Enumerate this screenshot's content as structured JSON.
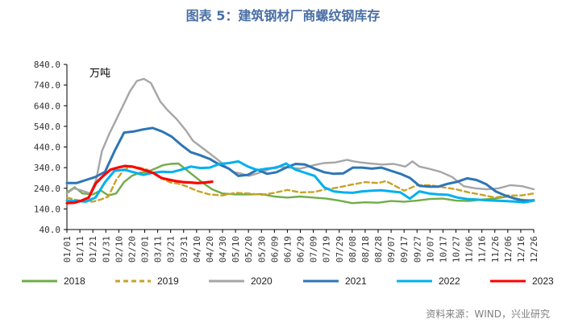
{
  "title": "图表 5：建筑钢材厂商螺纹钢库存",
  "source": "资料来源：WIND，兴业研究",
  "chart_data": {
    "type": "line",
    "title": "图表 5：建筑钢材厂商螺纹钢库存",
    "unit_label": "万吨",
    "ylim": [
      40,
      840
    ],
    "yticks": [
      "840.0",
      "740.0",
      "640.0",
      "540.0",
      "440.0",
      "340.0",
      "240.0",
      "140.0",
      "40.0"
    ],
    "ytick_values": [
      840,
      740,
      640,
      540,
      440,
      340,
      240,
      140,
      40
    ],
    "grid": false,
    "legend_position": "bottom",
    "x": [
      "01/01",
      "01/11",
      "01/21",
      "01/31",
      "02/10",
      "02/20",
      "03/01",
      "03/11",
      "03/21",
      "03/31",
      "04/10",
      "04/20",
      "04/30",
      "05/10",
      "05/20",
      "05/30",
      "06/09",
      "06/19",
      "06/29",
      "07/09",
      "07/19",
      "07/29",
      "08/08",
      "08/18",
      "08/28",
      "09/07",
      "09/17",
      "09/27",
      "10/07",
      "10/17",
      "10/27",
      "11/06",
      "11/16",
      "11/26",
      "12/06",
      "12/16",
      "12/26"
    ],
    "series": [
      {
        "name": "2018",
        "color": "#70ad47",
        "dash": "solid",
        "points": [
          [
            0,
            220
          ],
          [
            0.6,
            245
          ],
          [
            1.2,
            215
          ],
          [
            2,
            210
          ],
          [
            2.6,
            230
          ],
          [
            3.2,
            205
          ],
          [
            3.8,
            215
          ],
          [
            4.4,
            270
          ],
          [
            5,
            300
          ],
          [
            5.6,
            315
          ],
          [
            6.2,
            320
          ],
          [
            6.8,
            335
          ],
          [
            7.4,
            352
          ],
          [
            8,
            358
          ],
          [
            8.6,
            360
          ],
          [
            9.2,
            330
          ],
          [
            9.8,
            300
          ],
          [
            10.5,
            265
          ],
          [
            11.2,
            235
          ],
          [
            12,
            215
          ],
          [
            13,
            210
          ],
          [
            14,
            210
          ],
          [
            15,
            212
          ],
          [
            16,
            200
          ],
          [
            17,
            195
          ],
          [
            18,
            200
          ],
          [
            19,
            195
          ],
          [
            20,
            190
          ],
          [
            21,
            180
          ],
          [
            22,
            168
          ],
          [
            23,
            172
          ],
          [
            24,
            170
          ],
          [
            25,
            178
          ],
          [
            26,
            175
          ],
          [
            27,
            180
          ],
          [
            28,
            188
          ],
          [
            29,
            190
          ],
          [
            30,
            180
          ],
          [
            31,
            178
          ],
          [
            32,
            185
          ],
          [
            33,
            190
          ],
          [
            34,
            200
          ],
          [
            35,
            185
          ],
          [
            36,
            180
          ]
        ]
      },
      {
        "name": "2019",
        "color": "#c9a227",
        "dash": "dashed",
        "points": [
          [
            0,
            195
          ],
          [
            0.6,
            185
          ],
          [
            1.2,
            178
          ],
          [
            2,
            175
          ],
          [
            2.6,
            185
          ],
          [
            3.2,
            200
          ],
          [
            3.8,
            280
          ],
          [
            4.4,
            330
          ],
          [
            5,
            345
          ],
          [
            5.6,
            340
          ],
          [
            6.2,
            330
          ],
          [
            6.8,
            310
          ],
          [
            7.4,
            285
          ],
          [
            8,
            268
          ],
          [
            8.6,
            262
          ],
          [
            9.2,
            250
          ],
          [
            10,
            228
          ],
          [
            11,
            210
          ],
          [
            12,
            205
          ],
          [
            13,
            218
          ],
          [
            14,
            215
          ],
          [
            15,
            208
          ],
          [
            16,
            218
          ],
          [
            17,
            232
          ],
          [
            18,
            220
          ],
          [
            19,
            222
          ],
          [
            20,
            235
          ],
          [
            21,
            245
          ],
          [
            22,
            258
          ],
          [
            23,
            270
          ],
          [
            24,
            265
          ],
          [
            24.6,
            275
          ],
          [
            25.2,
            255
          ],
          [
            26,
            228
          ],
          [
            27,
            255
          ],
          [
            28,
            255
          ],
          [
            29,
            245
          ],
          [
            30,
            235
          ],
          [
            31,
            220
          ],
          [
            32,
            208
          ],
          [
            33,
            195
          ],
          [
            34,
            205
          ],
          [
            35,
            205
          ],
          [
            36,
            215
          ]
        ]
      },
      {
        "name": "2020",
        "color": "#a6a6a6",
        "dash": "solid",
        "points": [
          [
            0,
            215
          ],
          [
            0.6,
            240
          ],
          [
            1.2,
            230
          ],
          [
            2,
            215
          ],
          [
            2.5,
            280
          ],
          [
            3,
            420
          ],
          [
            3.6,
            500
          ],
          [
            4.2,
            570
          ],
          [
            4.8,
            640
          ],
          [
            5.4,
            710
          ],
          [
            6,
            760
          ],
          [
            6.6,
            770
          ],
          [
            7.2,
            750
          ],
          [
            8,
            660
          ],
          [
            8.6,
            620
          ],
          [
            9.4,
            575
          ],
          [
            10.2,
            520
          ],
          [
            10.8,
            470
          ],
          [
            11.5,
            440
          ],
          [
            12.2,
            410
          ],
          [
            13,
            375
          ],
          [
            13.6,
            345
          ],
          [
            14.2,
            320
          ],
          [
            15,
            310
          ],
          [
            15.6,
            300
          ],
          [
            16.2,
            310
          ],
          [
            17,
            325
          ],
          [
            18,
            345
          ],
          [
            19,
            340
          ],
          [
            20,
            335
          ],
          [
            21,
            350
          ],
          [
            22,
            362
          ],
          [
            23,
            365
          ],
          [
            24,
            378
          ],
          [
            24.6,
            370
          ],
          [
            25.2,
            365
          ],
          [
            26,
            360
          ],
          [
            27,
            355
          ],
          [
            28,
            358
          ],
          [
            29,
            345
          ],
          [
            29.6,
            370
          ],
          [
            30.2,
            345
          ],
          [
            31,
            335
          ],
          [
            32,
            320
          ],
          [
            33,
            295
          ],
          [
            34,
            250
          ],
          [
            35,
            240
          ],
          [
            36,
            235
          ],
          [
            37,
            240
          ],
          [
            38,
            255
          ],
          [
            39,
            250
          ],
          [
            40,
            235
          ]
        ]
      },
      {
        "name": "2021",
        "color": "#2e75b6",
        "dash": "solid",
        "points": [
          [
            0,
            265
          ],
          [
            1,
            265
          ],
          [
            2,
            280
          ],
          [
            3,
            295
          ],
          [
            4,
            320
          ],
          [
            5,
            420
          ],
          [
            6,
            510
          ],
          [
            7,
            515
          ],
          [
            8,
            525
          ],
          [
            9,
            532
          ],
          [
            10,
            515
          ],
          [
            11,
            490
          ],
          [
            12,
            450
          ],
          [
            13,
            415
          ],
          [
            14,
            400
          ],
          [
            15,
            382
          ],
          [
            16,
            355
          ],
          [
            17,
            335
          ],
          [
            18,
            300
          ],
          [
            19,
            305
          ],
          [
            20,
            330
          ],
          [
            21,
            310
          ],
          [
            22,
            318
          ],
          [
            23,
            340
          ],
          [
            24,
            358
          ],
          [
            25,
            355
          ],
          [
            26,
            335
          ],
          [
            27,
            318
          ],
          [
            28,
            310
          ],
          [
            29,
            312
          ],
          [
            30,
            340
          ],
          [
            31,
            340
          ],
          [
            32,
            335
          ],
          [
            33,
            340
          ],
          [
            34,
            325
          ],
          [
            35,
            310
          ],
          [
            36,
            290
          ],
          [
            37,
            252
          ],
          [
            38,
            248
          ],
          [
            39,
            248
          ],
          [
            40,
            262
          ],
          [
            41,
            272
          ],
          [
            42,
            288
          ],
          [
            43,
            280
          ],
          [
            44,
            260
          ],
          [
            45,
            225
          ],
          [
            46,
            205
          ],
          [
            47,
            190
          ],
          [
            48,
            178
          ],
          [
            49,
            182
          ]
        ]
      },
      {
        "name": "2022",
        "color": "#00b0f0",
        "dash": "solid",
        "points": [
          [
            0,
            180
          ],
          [
            1,
            178
          ],
          [
            2,
            175
          ],
          [
            3,
            195
          ],
          [
            4,
            270
          ],
          [
            5,
            325
          ],
          [
            6,
            330
          ],
          [
            7,
            318
          ],
          [
            8,
            305
          ],
          [
            9,
            315
          ],
          [
            10,
            320
          ],
          [
            11,
            318
          ],
          [
            12,
            330
          ],
          [
            13,
            345
          ],
          [
            14,
            338
          ],
          [
            15,
            340
          ],
          [
            16,
            358
          ],
          [
            17,
            362
          ],
          [
            18,
            370
          ],
          [
            19,
            345
          ],
          [
            20,
            328
          ],
          [
            21,
            335
          ],
          [
            22,
            340
          ],
          [
            23,
            360
          ],
          [
            24,
            330
          ],
          [
            25,
            315
          ],
          [
            26,
            300
          ],
          [
            27,
            245
          ],
          [
            28,
            225
          ],
          [
            29,
            220
          ],
          [
            30,
            218
          ],
          [
            31,
            225
          ],
          [
            32,
            228
          ],
          [
            33,
            230
          ],
          [
            34,
            225
          ],
          [
            35,
            220
          ],
          [
            36,
            190
          ],
          [
            37,
            225
          ],
          [
            38,
            215
          ],
          [
            39,
            210
          ],
          [
            40,
            208
          ],
          [
            41,
            195
          ],
          [
            42,
            188
          ],
          [
            43,
            185
          ],
          [
            44,
            182
          ],
          [
            45,
            180
          ],
          [
            46,
            178
          ],
          [
            47,
            176
          ],
          [
            48,
            172
          ],
          [
            49,
            180
          ]
        ]
      },
      {
        "name": "2023",
        "color": "#ff0000",
        "dash": "solid",
        "points": [
          [
            0,
            168
          ],
          [
            0.8,
            170
          ],
          [
            1.6,
            180
          ],
          [
            2.4,
            195
          ],
          [
            3.2,
            265
          ],
          [
            4,
            300
          ],
          [
            4.8,
            330
          ],
          [
            5.6,
            340
          ],
          [
            6.4,
            348
          ],
          [
            7.2,
            345
          ],
          [
            8,
            335
          ],
          [
            8.8,
            325
          ],
          [
            9.6,
            312
          ],
          [
            10.4,
            290
          ],
          [
            11.2,
            282
          ],
          [
            12,
            275
          ],
          [
            12.8,
            270
          ],
          [
            13.6,
            268
          ],
          [
            14.4,
            265
          ],
          [
            15.2,
            268
          ],
          [
            16,
            272
          ]
        ]
      }
    ]
  },
  "legend": [
    {
      "label": "2018",
      "color": "#70ad47",
      "dash": "solid"
    },
    {
      "label": "2019",
      "color": "#c9a227",
      "dash": "dashed"
    },
    {
      "label": "2020",
      "color": "#a6a6a6",
      "dash": "solid"
    },
    {
      "label": "2021",
      "color": "#2e75b6",
      "dash": "solid"
    },
    {
      "label": "2022",
      "color": "#00b0f0",
      "dash": "solid"
    },
    {
      "label": "2023",
      "color": "#ff0000",
      "dash": "solid"
    }
  ]
}
